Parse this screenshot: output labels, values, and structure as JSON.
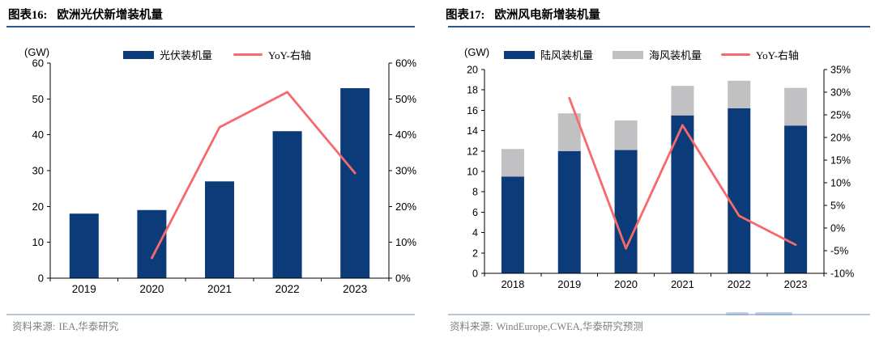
{
  "colors": {
    "bar_navy": "#0B3B78",
    "bar_gray": "#C1C1C3",
    "line_red": "#F8696B",
    "title_rule_blue": "#2F5597",
    "divider_blue": "#B7C6DC",
    "source_gray": "#7F7F7F"
  },
  "chart_data": [
    {
      "type": "bar",
      "fig_label": "图表16:",
      "title": "欧洲光伏新增装机量",
      "unit_label": "(GW)",
      "categories": [
        "2019",
        "2020",
        "2021",
        "2022",
        "2023"
      ],
      "series": [
        {
          "name": "光伏装机量",
          "type": "bar",
          "color": "#0B3B78",
          "values": [
            18,
            19,
            27,
            41,
            53
          ]
        }
      ],
      "line_series": {
        "name": "YoY-右轴",
        "type": "line",
        "color": "#F8696B",
        "axis": "right",
        "categories": [
          "2020",
          "2021",
          "2022",
          "2023"
        ],
        "values": [
          5.6,
          42.1,
          51.9,
          29.3
        ]
      },
      "left_axis": {
        "min": 0,
        "max": 60,
        "step": 10
      },
      "right_axis": {
        "min": 0,
        "max": 60,
        "step": 5,
        "label_step": 10,
        "format": "percent"
      },
      "grid": false,
      "legend_position": "top",
      "source_label": "资料来源:",
      "source": "IEA,华泰研究"
    },
    {
      "type": "stacked-bar",
      "fig_label": "图表17:",
      "title": "欧洲风电新增装机量",
      "unit_label": "(GW)",
      "categories": [
        "2018",
        "2019",
        "2020",
        "2021",
        "2022",
        "2023"
      ],
      "series": [
        {
          "name": "陆风装机量",
          "type": "bar",
          "color": "#0B3B78",
          "values": [
            9.5,
            12,
            12.1,
            15.5,
            16.2,
            14.5
          ]
        },
        {
          "name": "海风装机量",
          "type": "bar",
          "color": "#C1C1C3",
          "values": [
            2.7,
            3.7,
            2.9,
            2.9,
            2.7,
            3.7
          ]
        }
      ],
      "line_series": {
        "name": "YoY-右轴",
        "type": "line",
        "color": "#F8696B",
        "axis": "right",
        "categories": [
          "2019",
          "2020",
          "2021",
          "2022",
          "2023"
        ],
        "values": [
          28.7,
          -4.5,
          22.7,
          2.7,
          -3.7
        ]
      },
      "left_axis": {
        "min": 0,
        "max": 20,
        "step": 2
      },
      "right_axis": {
        "min": -10,
        "max": 35,
        "step": 5,
        "label_step": 5,
        "format": "percent"
      },
      "grid": false,
      "legend_position": "top",
      "source_label": "资料来源:",
      "source": "WindEurope,CWEA,华泰研究预测"
    }
  ]
}
